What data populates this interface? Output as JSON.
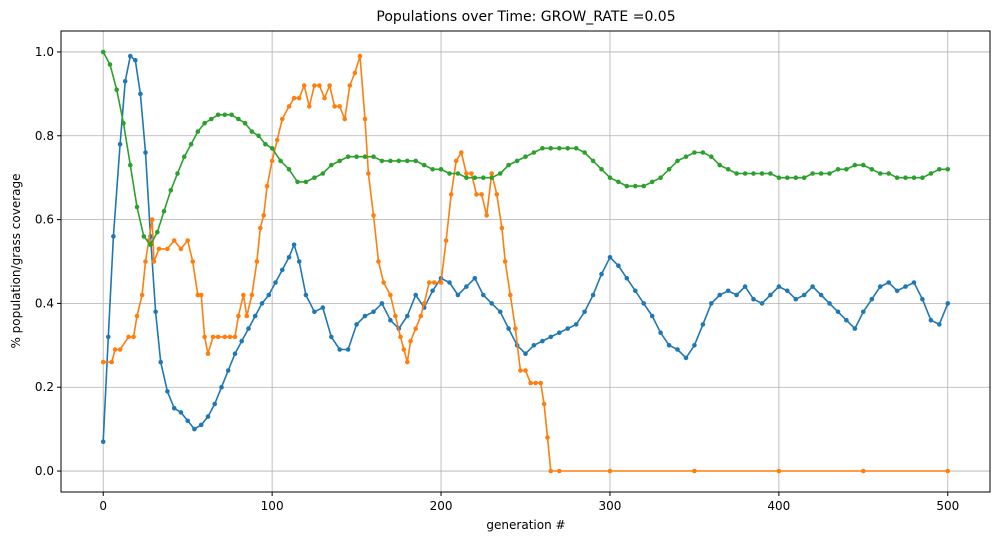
{
  "chart_data": {
    "type": "line",
    "title": "Populations over Time: GROW_RATE =0.05",
    "xlabel": "generation #",
    "ylabel": "% population/grass coverage",
    "xlim": [
      -25,
      525
    ],
    "ylim": [
      -0.05,
      1.05
    ],
    "xticks": [
      "0",
      "100",
      "200",
      "300",
      "400",
      "500"
    ],
    "yticks": [
      "0.0",
      "0.2",
      "0.4",
      "0.6",
      "0.8",
      "1.0"
    ],
    "grid": true,
    "marker": "dot",
    "series": [
      {
        "color": "#1f77b4",
        "x": [
          0,
          3,
          6,
          10,
          13,
          16,
          19,
          22,
          25,
          28,
          31,
          34,
          38,
          42,
          46,
          50,
          54,
          58,
          62,
          66,
          70,
          74,
          78,
          82,
          86,
          90,
          94,
          98,
          102,
          106,
          110,
          113,
          116,
          120,
          125,
          130,
          135,
          140,
          145,
          150,
          155,
          160,
          165,
          170,
          175,
          180,
          185,
          190,
          195,
          200,
          205,
          210,
          215,
          220,
          225,
          230,
          235,
          240,
          245,
          250,
          255,
          260,
          265,
          270,
          275,
          280,
          285,
          290,
          295,
          300,
          305,
          310,
          315,
          320,
          325,
          330,
          335,
          340,
          345,
          350,
          355,
          360,
          365,
          370,
          375,
          380,
          385,
          390,
          395,
          400,
          405,
          410,
          415,
          420,
          425,
          430,
          435,
          440,
          445,
          450,
          455,
          460,
          465,
          470,
          475,
          480,
          485,
          490,
          495,
          500
        ],
        "y": [
          0.07,
          0.32,
          0.56,
          0.78,
          0.93,
          0.99,
          0.98,
          0.9,
          0.76,
          0.56,
          0.38,
          0.26,
          0.19,
          0.15,
          0.14,
          0.12,
          0.1,
          0.11,
          0.13,
          0.16,
          0.2,
          0.24,
          0.28,
          0.31,
          0.34,
          0.37,
          0.4,
          0.42,
          0.45,
          0.48,
          0.51,
          0.54,
          0.5,
          0.42,
          0.38,
          0.39,
          0.32,
          0.29,
          0.29,
          0.35,
          0.37,
          0.38,
          0.4,
          0.36,
          0.34,
          0.37,
          0.42,
          0.39,
          0.43,
          0.46,
          0.45,
          0.42,
          0.44,
          0.46,
          0.42,
          0.4,
          0.38,
          0.34,
          0.3,
          0.28,
          0.3,
          0.31,
          0.32,
          0.33,
          0.34,
          0.35,
          0.38,
          0.42,
          0.47,
          0.51,
          0.49,
          0.46,
          0.43,
          0.4,
          0.37,
          0.33,
          0.3,
          0.29,
          0.27,
          0.3,
          0.35,
          0.4,
          0.42,
          0.43,
          0.42,
          0.44,
          0.41,
          0.4,
          0.42,
          0.44,
          0.43,
          0.41,
          0.42,
          0.44,
          0.42,
          0.4,
          0.38,
          0.36,
          0.34,
          0.38,
          0.41,
          0.44,
          0.45,
          0.43,
          0.44,
          0.45,
          0.41,
          0.36,
          0.35,
          0.4
        ]
      },
      {
        "color": "#ff7f0e",
        "x": [
          0,
          5,
          7,
          10,
          15,
          18,
          20,
          23,
          25,
          27,
          29,
          30,
          33,
          38,
          42,
          46,
          50,
          53,
          56,
          58,
          60,
          62,
          65,
          68,
          72,
          75,
          78,
          80,
          83,
          85,
          88,
          91,
          93,
          95,
          97,
          100,
          103,
          106,
          110,
          113,
          116,
          119,
          122,
          125,
          128,
          131,
          134,
          137,
          140,
          143,
          146,
          149,
          152,
          155,
          157,
          160,
          163,
          166,
          170,
          173,
          176,
          178,
          180,
          182,
          185,
          188,
          190,
          193,
          196,
          200,
          203,
          206,
          209,
          212,
          215,
          218,
          221,
          224,
          227,
          230,
          233,
          236,
          238,
          241,
          244,
          247,
          250,
          253,
          256,
          259,
          261,
          263,
          265,
          270,
          300,
          350,
          400,
          450,
          500
        ],
        "y": [
          0.26,
          0.26,
          0.29,
          0.29,
          0.32,
          0.32,
          0.37,
          0.42,
          0.5,
          0.55,
          0.6,
          0.5,
          0.53,
          0.53,
          0.55,
          0.53,
          0.55,
          0.5,
          0.42,
          0.42,
          0.32,
          0.28,
          0.32,
          0.32,
          0.32,
          0.32,
          0.32,
          0.37,
          0.42,
          0.37,
          0.42,
          0.5,
          0.58,
          0.61,
          0.68,
          0.74,
          0.79,
          0.84,
          0.87,
          0.89,
          0.89,
          0.92,
          0.87,
          0.92,
          0.92,
          0.89,
          0.92,
          0.87,
          0.87,
          0.84,
          0.92,
          0.95,
          0.99,
          0.84,
          0.71,
          0.61,
          0.5,
          0.45,
          0.42,
          0.37,
          0.32,
          0.29,
          0.26,
          0.31,
          0.34,
          0.37,
          0.4,
          0.45,
          0.45,
          0.45,
          0.55,
          0.66,
          0.74,
          0.76,
          0.71,
          0.71,
          0.66,
          0.66,
          0.61,
          0.71,
          0.66,
          0.58,
          0.5,
          0.42,
          0.34,
          0.24,
          0.24,
          0.21,
          0.21,
          0.21,
          0.16,
          0.08,
          0.0,
          0.0,
          0.0,
          0.0,
          0.0,
          0.0,
          0.0
        ]
      },
      {
        "color": "#2ca02c",
        "x": [
          0,
          4,
          8,
          12,
          16,
          20,
          24,
          28,
          32,
          36,
          40,
          44,
          48,
          52,
          56,
          60,
          64,
          68,
          72,
          76,
          80,
          84,
          88,
          92,
          96,
          100,
          105,
          110,
          115,
          120,
          125,
          130,
          135,
          140,
          145,
          150,
          155,
          160,
          165,
          170,
          175,
          180,
          185,
          190,
          195,
          200,
          205,
          210,
          215,
          220,
          225,
          230,
          235,
          240,
          245,
          250,
          255,
          260,
          265,
          270,
          275,
          280,
          285,
          290,
          295,
          300,
          305,
          310,
          315,
          320,
          325,
          330,
          335,
          340,
          345,
          350,
          355,
          360,
          365,
          370,
          375,
          380,
          385,
          390,
          395,
          400,
          405,
          410,
          415,
          420,
          425,
          430,
          435,
          440,
          445,
          450,
          455,
          460,
          465,
          470,
          475,
          480,
          485,
          490,
          495,
          500
        ],
        "y": [
          1.0,
          0.97,
          0.91,
          0.83,
          0.73,
          0.63,
          0.56,
          0.54,
          0.57,
          0.62,
          0.67,
          0.71,
          0.75,
          0.78,
          0.81,
          0.83,
          0.84,
          0.85,
          0.85,
          0.85,
          0.84,
          0.83,
          0.81,
          0.8,
          0.78,
          0.77,
          0.74,
          0.72,
          0.69,
          0.69,
          0.7,
          0.71,
          0.73,
          0.74,
          0.75,
          0.75,
          0.75,
          0.75,
          0.74,
          0.74,
          0.74,
          0.74,
          0.74,
          0.73,
          0.72,
          0.72,
          0.71,
          0.71,
          0.7,
          0.7,
          0.7,
          0.7,
          0.71,
          0.73,
          0.74,
          0.75,
          0.76,
          0.77,
          0.77,
          0.77,
          0.77,
          0.77,
          0.76,
          0.74,
          0.72,
          0.7,
          0.69,
          0.68,
          0.68,
          0.68,
          0.69,
          0.7,
          0.72,
          0.74,
          0.75,
          0.76,
          0.76,
          0.75,
          0.73,
          0.72,
          0.71,
          0.71,
          0.71,
          0.71,
          0.71,
          0.7,
          0.7,
          0.7,
          0.7,
          0.71,
          0.71,
          0.71,
          0.72,
          0.72,
          0.73,
          0.73,
          0.72,
          0.71,
          0.71,
          0.7,
          0.7,
          0.7,
          0.7,
          0.71,
          0.72,
          0.72
        ]
      }
    ]
  }
}
